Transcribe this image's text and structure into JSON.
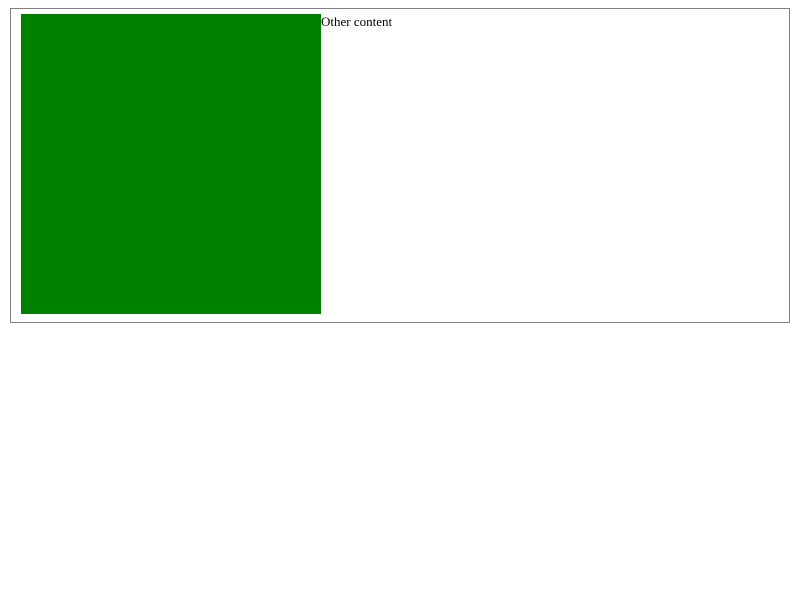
{
  "content": {
    "text": "Other content"
  },
  "colors": {
    "box_fill": "#008000",
    "frame_border": "#808080",
    "page_background": "#ffffff"
  }
}
